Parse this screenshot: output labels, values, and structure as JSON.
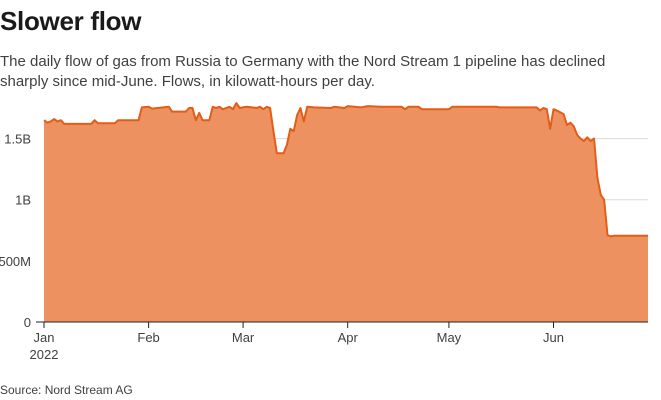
{
  "header": {
    "title": "Slower flow",
    "subtitle": "The daily flow of gas from Russia to Germany with the Nord Stream 1 pipeline has declined sharply since mid-June. Flows, in kilowatt-hours per day."
  },
  "footer": {
    "source": "Source: Nord Stream AG"
  },
  "colors": {
    "fill": "#ee9160",
    "line": "#e35d16",
    "grid": "#d9d9d9",
    "axis": "#222222",
    "text": "#404040"
  },
  "chart_data": {
    "type": "area",
    "title": "Slower flow",
    "xlabel": "",
    "ylabel": "",
    "grid": true,
    "x_ticks": [
      {
        "day": 0,
        "label": "Jan",
        "sublabel": "2022"
      },
      {
        "day": 31,
        "label": "Feb"
      },
      {
        "day": 59,
        "label": "Mar"
      },
      {
        "day": 90,
        "label": "Apr"
      },
      {
        "day": 120,
        "label": "May"
      },
      {
        "day": 151,
        "label": "Jun"
      }
    ],
    "y_ticks": [
      {
        "value": 0,
        "label": "0"
      },
      {
        "value": 500000000,
        "label": "500M"
      },
      {
        "value": 1000000000,
        "label": "1B"
      },
      {
        "value": 1500000000,
        "label": "1.5B"
      }
    ],
    "xlim": [
      0,
      179
    ],
    "ylim": [
      0,
      1750000000
    ],
    "series": [
      {
        "name": "",
        "points": [
          [
            0,
            1650000000
          ],
          [
            1,
            1630000000
          ],
          [
            2,
            1640000000
          ],
          [
            3,
            1660000000
          ],
          [
            4,
            1640000000
          ],
          [
            5,
            1650000000
          ],
          [
            6,
            1620000000
          ],
          [
            14,
            1620000000
          ],
          [
            15,
            1650000000
          ],
          [
            16,
            1625000000
          ],
          [
            21,
            1625000000
          ],
          [
            22,
            1650000000
          ],
          [
            28,
            1650000000
          ],
          [
            29,
            1755000000
          ],
          [
            31,
            1760000000
          ],
          [
            32,
            1745000000
          ],
          [
            37,
            1760000000
          ],
          [
            38,
            1720000000
          ],
          [
            42,
            1720000000
          ],
          [
            43,
            1750000000
          ],
          [
            44,
            1750000000
          ],
          [
            45,
            1650000000
          ],
          [
            46,
            1710000000
          ],
          [
            47,
            1650000000
          ],
          [
            49,
            1650000000
          ],
          [
            50,
            1760000000
          ],
          [
            51,
            1750000000
          ],
          [
            52,
            1760000000
          ],
          [
            53,
            1740000000
          ],
          [
            55,
            1760000000
          ],
          [
            56,
            1740000000
          ],
          [
            57,
            1790000000
          ],
          [
            58,
            1750000000
          ],
          [
            60,
            1760000000
          ],
          [
            63,
            1750000000
          ],
          [
            64,
            1760000000
          ],
          [
            65,
            1740000000
          ],
          [
            66,
            1760000000
          ],
          [
            67,
            1750000000
          ],
          [
            68,
            1560000000
          ],
          [
            69,
            1380000000
          ],
          [
            71,
            1380000000
          ],
          [
            72,
            1450000000
          ],
          [
            73,
            1580000000
          ],
          [
            74,
            1560000000
          ],
          [
            75,
            1690000000
          ],
          [
            76,
            1750000000
          ],
          [
            77,
            1640000000
          ],
          [
            78,
            1760000000
          ],
          [
            80,
            1755000000
          ],
          [
            85,
            1750000000
          ],
          [
            86,
            1760000000
          ],
          [
            89,
            1750000000
          ],
          [
            90,
            1765000000
          ],
          [
            94,
            1755000000
          ],
          [
            96,
            1765000000
          ],
          [
            100,
            1760000000
          ],
          [
            106,
            1760000000
          ],
          [
            107,
            1740000000
          ],
          [
            108,
            1760000000
          ],
          [
            111,
            1760000000
          ],
          [
            112,
            1740000000
          ],
          [
            120,
            1740000000
          ],
          [
            121,
            1760000000
          ],
          [
            134,
            1760000000
          ],
          [
            135,
            1755000000
          ],
          [
            146,
            1755000000
          ],
          [
            147,
            1730000000
          ],
          [
            148,
            1750000000
          ],
          [
            149,
            1740000000
          ],
          [
            150,
            1580000000
          ],
          [
            151,
            1740000000
          ],
          [
            152,
            1730000000
          ],
          [
            154,
            1700000000
          ],
          [
            155,
            1610000000
          ],
          [
            156,
            1630000000
          ],
          [
            157,
            1600000000
          ],
          [
            158,
            1530000000
          ],
          [
            159,
            1500000000
          ],
          [
            160,
            1480000000
          ],
          [
            161,
            1510000000
          ],
          [
            162,
            1480000000
          ],
          [
            163,
            1500000000
          ],
          [
            164,
            1180000000
          ],
          [
            165,
            1040000000
          ],
          [
            166,
            1000000000
          ],
          [
            167,
            710000000
          ],
          [
            168,
            700000000
          ],
          [
            169,
            705000000
          ],
          [
            171,
            705000000
          ],
          [
            179,
            705000000
          ]
        ]
      }
    ]
  }
}
